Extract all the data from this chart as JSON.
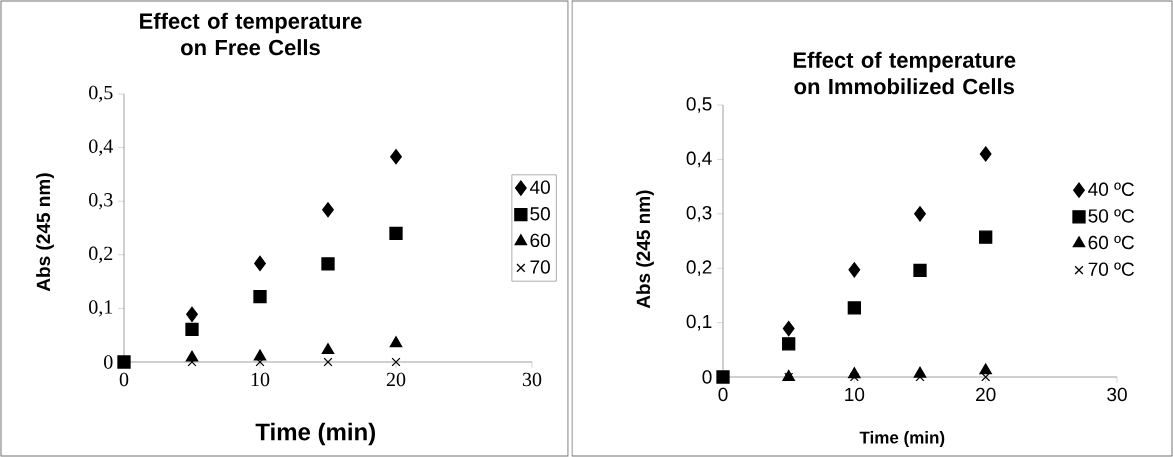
{
  "chart_data": [
    {
      "type": "scatter",
      "title": "Effect of temperature on Free Cells",
      "xlabel": "Time (min)",
      "ylabel": "Abs (245 nm)",
      "x": [
        0,
        5,
        10,
        15,
        20
      ],
      "xlim": [
        0,
        30
      ],
      "xticks": [
        0,
        10,
        20,
        30
      ],
      "ylim": [
        0,
        0.5
      ],
      "yticks": [
        0,
        {
          "value": 0.1,
          "label": "0,1"
        },
        {
          "value": 0.2,
          "label": "0,2"
        },
        {
          "value": 0.3,
          "label": "0,3"
        },
        {
          "value": 0.4,
          "label": "0,4"
        },
        {
          "value": 0.5,
          "label": "0,5"
        }
      ],
      "legend": "right",
      "series": [
        {
          "name": "40",
          "color": "#000000",
          "marker": "diamond",
          "values": [
            null,
            0.089,
            0.184,
            0.284,
            0.383
          ]
        },
        {
          "name": "50",
          "color": "#000000",
          "marker": "square",
          "values": [
            0,
            0.061,
            0.122,
            0.183,
            0.24
          ]
        },
        {
          "name": "60",
          "color": "#000000",
          "marker": "triangle",
          "values": [
            null,
            0.008,
            0.01,
            0.022,
            0.035
          ]
        },
        {
          "name": "70",
          "color": "#000000",
          "marker": "cross",
          "values": [
            null,
            0,
            0,
            0,
            0
          ]
        }
      ]
    },
    {
      "type": "scatter",
      "title": "Effect of temperature on Immobilized Cells",
      "xlabel": "Time (min)",
      "ylabel": "Abs (245 nm)",
      "x": [
        0,
        5,
        10,
        15,
        20
      ],
      "xlim": [
        0,
        30
      ],
      "xticks": [
        0,
        10,
        20,
        30
      ],
      "ylim": [
        0,
        0.5
      ],
      "yticks": [
        0,
        {
          "value": 0.1,
          "label": "0,1"
        },
        {
          "value": 0.2,
          "label": "0,2"
        },
        {
          "value": 0.3,
          "label": "0,3"
        },
        {
          "value": 0.4,
          "label": "0,4"
        },
        {
          "value": 0.5,
          "label": "0,5"
        }
      ],
      "legend": "right",
      "series": [
        {
          "name": "40 ºC",
          "color": "#000000",
          "marker": "diamond",
          "values": [
            null,
            0.089,
            0.197,
            0.3,
            0.41
          ]
        },
        {
          "name": "50 ºC",
          "color": "#000000",
          "marker": "square",
          "values": [
            0,
            0.061,
            0.127,
            0.196,
            0.257
          ]
        },
        {
          "name": "60 ºC",
          "color": "#000000",
          "marker": "triangle",
          "values": [
            null,
            0,
            0.005,
            0.006,
            0.012
          ]
        },
        {
          "name": "70 ºC",
          "color": "#000000",
          "marker": "cross",
          "values": [
            null,
            0,
            0,
            0,
            0
          ]
        }
      ]
    }
  ]
}
